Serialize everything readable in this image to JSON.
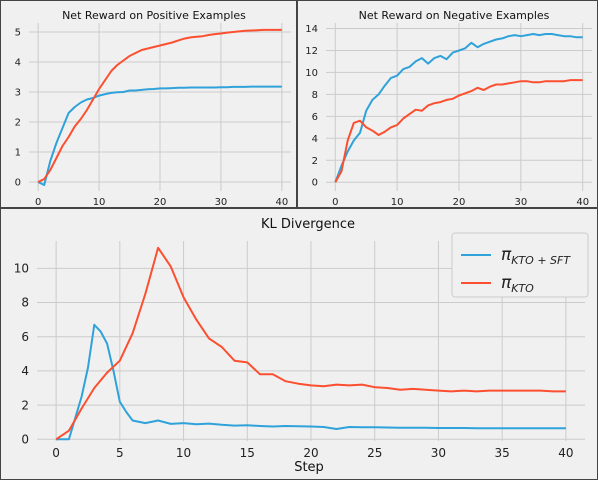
{
  "colors": {
    "blue": "#30a2da",
    "red": "#fc4f30"
  },
  "chart_data": [
    {
      "type": "line",
      "title": "Net Reward on Positive Examples",
      "xlim": [
        -1.5,
        41.5
      ],
      "ylim": [
        -0.3,
        5.3
      ],
      "xticks": [
        0,
        10,
        20,
        30,
        40
      ],
      "yticks": [
        0,
        1,
        2,
        3,
        4,
        5
      ],
      "grid": true,
      "series": [
        {
          "color": "blue",
          "x": [
            0,
            1,
            2,
            3,
            4,
            5,
            6,
            7,
            8,
            9,
            10,
            11,
            12,
            13,
            14,
            15,
            16,
            17,
            18,
            19,
            20,
            21,
            22,
            23,
            24,
            25,
            26,
            27,
            28,
            29,
            30,
            31,
            32,
            33,
            34,
            35,
            36,
            37,
            38,
            39,
            40
          ],
          "values": [
            0,
            -0.1,
            0.7,
            1.3,
            1.8,
            2.3,
            2.5,
            2.65,
            2.75,
            2.8,
            2.88,
            2.93,
            2.97,
            2.99,
            3.0,
            3.05,
            3.05,
            3.07,
            3.09,
            3.1,
            3.12,
            3.12,
            3.13,
            3.14,
            3.14,
            3.15,
            3.15,
            3.15,
            3.15,
            3.15,
            3.16,
            3.16,
            3.17,
            3.17,
            3.17,
            3.18,
            3.18,
            3.18,
            3.18,
            3.18,
            3.18
          ]
        },
        {
          "color": "red",
          "x": [
            0,
            1,
            2,
            3,
            4,
            5,
            6,
            7,
            8,
            9,
            10,
            11,
            12,
            13,
            14,
            15,
            16,
            17,
            18,
            19,
            20,
            21,
            22,
            23,
            24,
            25,
            26,
            27,
            28,
            29,
            30,
            31,
            32,
            33,
            34,
            35,
            36,
            37,
            38,
            39,
            40
          ],
          "values": [
            0,
            0.1,
            0.4,
            0.8,
            1.2,
            1.5,
            1.85,
            2.1,
            2.4,
            2.75,
            3.1,
            3.4,
            3.7,
            3.9,
            4.05,
            4.2,
            4.3,
            4.4,
            4.45,
            4.5,
            4.55,
            4.6,
            4.65,
            4.72,
            4.78,
            4.82,
            4.84,
            4.86,
            4.9,
            4.93,
            4.95,
            4.98,
            5.0,
            5.02,
            5.04,
            5.05,
            5.06,
            5.07,
            5.07,
            5.07,
            5.07
          ]
        }
      ]
    },
    {
      "type": "line",
      "title": "Net Reward on Negative Examples",
      "xlim": [
        -1.5,
        41.5
      ],
      "ylim": [
        -0.8,
        14.5
      ],
      "xticks": [
        0,
        10,
        20,
        30,
        40
      ],
      "yticks": [
        0,
        2,
        4,
        6,
        8,
        10,
        12,
        14
      ],
      "grid": true,
      "series": [
        {
          "color": "blue",
          "x": [
            0,
            1,
            2,
            3,
            4,
            5,
            6,
            7,
            8,
            9,
            10,
            11,
            12,
            13,
            14,
            15,
            16,
            17,
            18,
            19,
            20,
            21,
            22,
            23,
            24,
            25,
            26,
            27,
            28,
            29,
            30,
            31,
            32,
            33,
            34,
            35,
            36,
            37,
            38,
            39,
            40
          ],
          "values": [
            0,
            1.5,
            2.8,
            3.8,
            4.5,
            6.5,
            7.5,
            8,
            8.8,
            9.5,
            9.7,
            10.3,
            10.5,
            11.0,
            11.3,
            10.8,
            11.3,
            11.5,
            11.2,
            11.8,
            12.0,
            12.2,
            12.7,
            12.3,
            12.6,
            12.8,
            13.0,
            13.1,
            13.3,
            13.4,
            13.3,
            13.4,
            13.5,
            13.4,
            13.5,
            13.5,
            13.4,
            13.3,
            13.3,
            13.2,
            13.2
          ]
        },
        {
          "color": "red",
          "x": [
            0,
            1,
            2,
            3,
            4,
            5,
            6,
            7,
            8,
            9,
            10,
            11,
            12,
            13,
            14,
            15,
            16,
            17,
            18,
            19,
            20,
            21,
            22,
            23,
            24,
            25,
            26,
            27,
            28,
            29,
            30,
            31,
            32,
            33,
            34,
            35,
            36,
            37,
            38,
            39,
            40
          ],
          "values": [
            0,
            1.0,
            3.8,
            5.4,
            5.6,
            5.0,
            4.7,
            4.3,
            4.6,
            5.0,
            5.2,
            5.8,
            6.2,
            6.6,
            6.5,
            7.0,
            7.2,
            7.3,
            7.5,
            7.6,
            7.9,
            8.1,
            8.3,
            8.6,
            8.4,
            8.7,
            8.9,
            8.9,
            9.0,
            9.1,
            9.2,
            9.2,
            9.1,
            9.1,
            9.2,
            9.2,
            9.2,
            9.2,
            9.3,
            9.3,
            9.3
          ]
        }
      ]
    },
    {
      "type": "line",
      "title": "KL Divergence",
      "xlabel": "Step",
      "xlim": [
        -1.5,
        41.5
      ],
      "ylim": [
        -0.1,
        11.6
      ],
      "xticks": [
        0,
        5,
        10,
        15,
        20,
        25,
        30,
        35,
        40
      ],
      "yticks": [
        0,
        2,
        4,
        6,
        8,
        10
      ],
      "grid": true,
      "legend": {
        "placement": "top-right",
        "entries": [
          {
            "base": "π",
            "sub": "KTO + SFT"
          },
          {
            "base": "π",
            "sub": "KTO"
          }
        ]
      },
      "series": [
        {
          "color": "blue",
          "x": [
            0,
            1,
            2,
            2.5,
            3,
            3.5,
            4,
            4.5,
            5,
            5.5,
            6,
            7,
            8,
            9,
            10,
            11,
            12,
            13,
            14,
            15,
            16,
            17,
            18,
            19,
            20,
            21,
            22,
            23,
            24,
            25,
            26,
            27,
            28,
            29,
            30,
            31,
            32,
            33,
            34,
            35,
            36,
            37,
            38,
            39,
            40
          ],
          "values": [
            0,
            0,
            2.5,
            4.2,
            6.7,
            6.3,
            5.6,
            4.0,
            2.2,
            1.6,
            1.1,
            0.95,
            1.1,
            0.9,
            0.95,
            0.88,
            0.92,
            0.85,
            0.8,
            0.82,
            0.78,
            0.75,
            0.78,
            0.76,
            0.75,
            0.72,
            0.6,
            0.72,
            0.7,
            0.7,
            0.69,
            0.68,
            0.67,
            0.67,
            0.66,
            0.66,
            0.66,
            0.65,
            0.65,
            0.65,
            0.65,
            0.65,
            0.65,
            0.65,
            0.65
          ]
        },
        {
          "color": "red",
          "x": [
            0,
            1,
            2,
            3,
            4,
            5,
            6,
            7,
            8,
            9,
            10,
            11,
            12,
            13,
            14,
            15,
            16,
            17,
            18,
            19,
            20,
            21,
            22,
            23,
            24,
            25,
            26,
            27,
            28,
            29,
            30,
            31,
            32,
            33,
            34,
            35,
            36,
            37,
            38,
            39,
            40
          ],
          "values": [
            0,
            0.5,
            1.8,
            3.0,
            3.9,
            4.6,
            6.2,
            8.5,
            11.2,
            10.1,
            8.3,
            7.0,
            5.9,
            5.4,
            4.6,
            4.5,
            3.8,
            3.8,
            3.4,
            3.25,
            3.15,
            3.1,
            3.2,
            3.15,
            3.2,
            3.05,
            3.0,
            2.9,
            2.95,
            2.9,
            2.85,
            2.8,
            2.85,
            2.8,
            2.85,
            2.85,
            2.85,
            2.85,
            2.85,
            2.8,
            2.8
          ]
        }
      ]
    }
  ]
}
